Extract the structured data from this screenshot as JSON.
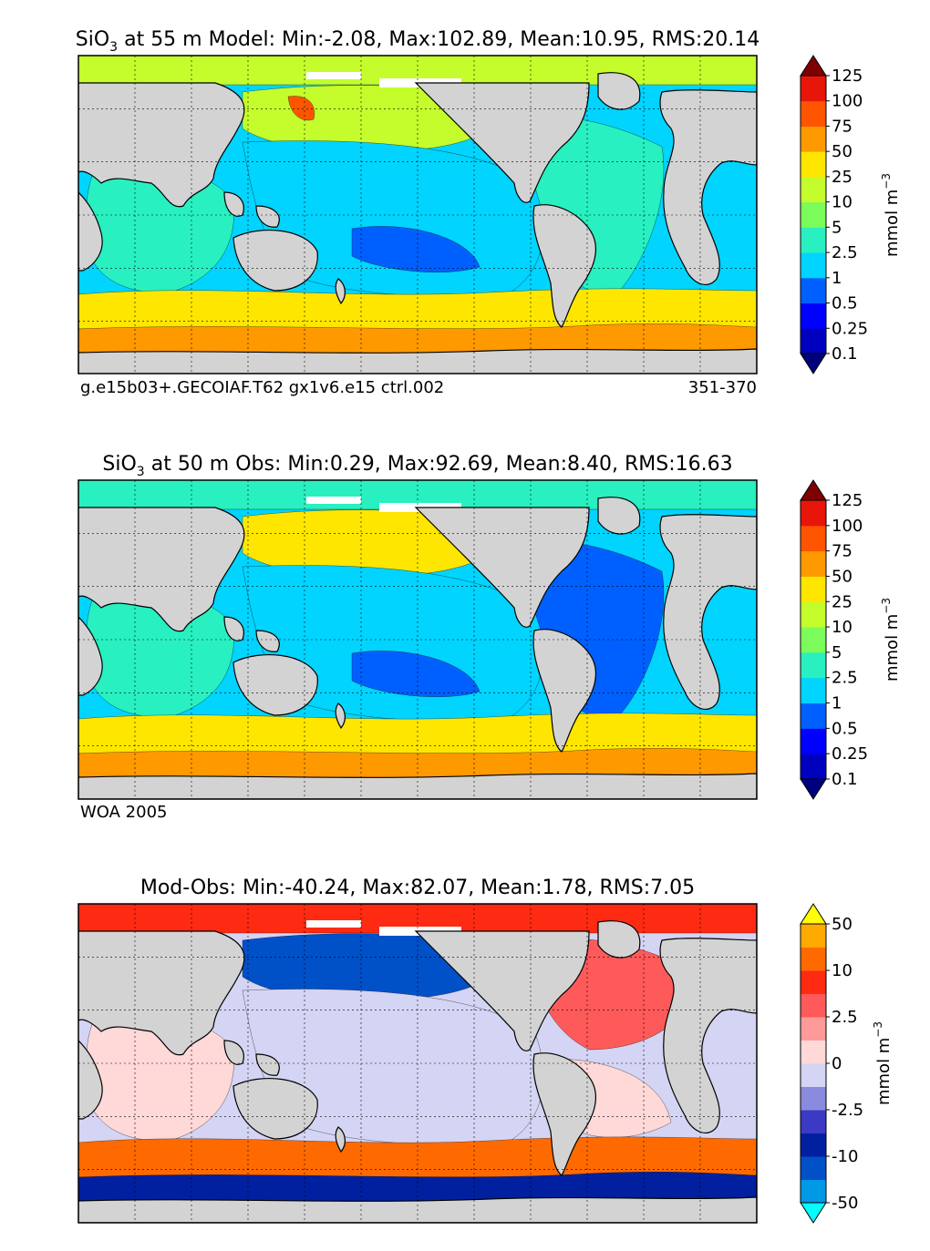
{
  "figure": {
    "colors": {
      "land": "#d3d3d3",
      "grid": "#000000",
      "coast": "#000000",
      "seaice": "#ffffff"
    }
  },
  "chart_data": [
    {
      "type": "heatmap",
      "panel": "model",
      "title_prefix": "SiO",
      "title_subscript": "3",
      "title": " at 55 m Model: Min:-2.08, Max:102.89, Mean:10.95, RMS:20.14",
      "stats": {
        "min": -2.08,
        "max": 102.89,
        "mean": 10.95,
        "rms": 20.14
      },
      "footer_left": "g.e15b03+.GECOIAF.T62 gx1v6.e15 ctrl.002",
      "footer_right": "351-370",
      "colorbar_label": "mmol m",
      "colorbar_exponent": "−3",
      "colorbar_levels": [
        "0.1",
        "0.25",
        "0.5",
        "1",
        "2.5",
        "5",
        "10",
        "25",
        "50",
        "75",
        "100",
        "125"
      ],
      "colorbar_colors": [
        "#00007f",
        "#0000bf",
        "#0000ff",
        "#0060ff",
        "#00d4ff",
        "#28f0c0",
        "#7cfc5a",
        "#c4fc2c",
        "#ffe600",
        "#ff9900",
        "#ff5500",
        "#e8150a",
        "#7f0000"
      ],
      "regions": [
        {
          "name": "arctic",
          "level": 7
        },
        {
          "name": "north-pacific-subpolar",
          "level": 7
        },
        {
          "name": "okhotsk",
          "level": 10
        },
        {
          "name": "pacific-subtropical",
          "level": 4
        },
        {
          "name": "south-pacific-gyre-core",
          "level": 3
        },
        {
          "name": "atlantic",
          "level": 5
        },
        {
          "name": "indian",
          "level": 5
        },
        {
          "name": "southern-ocean-band",
          "level": 8
        },
        {
          "name": "antarctic-margin",
          "level": 9
        }
      ]
    },
    {
      "type": "heatmap",
      "panel": "obs",
      "title_prefix": "SiO",
      "title_subscript": "3",
      "title": " at 50 m Obs: Min:0.29, Max:92.69, Mean:8.40, RMS:16.63",
      "stats": {
        "min": 0.29,
        "max": 92.69,
        "mean": 8.4,
        "rms": 16.63
      },
      "footer_left": "WOA 2005",
      "footer_right": "",
      "colorbar_label": "mmol m",
      "colorbar_exponent": "−3",
      "colorbar_levels": [
        "0.1",
        "0.25",
        "0.5",
        "1",
        "2.5",
        "5",
        "10",
        "25",
        "50",
        "75",
        "100",
        "125"
      ],
      "colorbar_colors": [
        "#00007f",
        "#0000bf",
        "#0000ff",
        "#0060ff",
        "#00d4ff",
        "#28f0c0",
        "#7cfc5a",
        "#c4fc2c",
        "#ffe600",
        "#ff9900",
        "#ff5500",
        "#e8150a",
        "#7f0000"
      ],
      "regions": [
        {
          "name": "arctic",
          "level": 5
        },
        {
          "name": "north-pacific-subpolar",
          "level": 8
        },
        {
          "name": "pacific-subtropical",
          "level": 4
        },
        {
          "name": "south-pacific-gyre-core",
          "level": 3
        },
        {
          "name": "atlantic",
          "level": 3
        },
        {
          "name": "indian",
          "level": 5
        },
        {
          "name": "southern-ocean-band",
          "level": 8
        },
        {
          "name": "antarctic-margin",
          "level": 9
        }
      ]
    },
    {
      "type": "heatmap",
      "panel": "difference",
      "title_prefix": "",
      "title_subscript": "",
      "title": "Mod-Obs: Min:-40.24, Max:82.07, Mean:1.78, RMS:7.05",
      "stats": {
        "min": -40.24,
        "max": 82.07,
        "mean": 1.78,
        "rms": 7.05
      },
      "footer_left": "",
      "footer_right": "",
      "colorbar_label": "mmol m",
      "colorbar_exponent": "−3",
      "colorbar_levels": [
        "-50",
        "-25",
        "-10",
        "-5",
        "-2.5",
        "-1",
        "0",
        "1",
        "2.5",
        "5",
        "10",
        "25",
        "50"
      ],
      "colorbar_tick_labels": [
        "-50",
        "-10",
        "-2.5",
        "0",
        "2.5",
        "10",
        "50"
      ],
      "colorbar_colors": [
        "#00ffff",
        "#0099e6",
        "#0050c8",
        "#0020a0",
        "#3a3ac4",
        "#8a8ade",
        "#d4d4f4",
        "#ffd8d8",
        "#ff9a9a",
        "#ff5a5a",
        "#ff2a12",
        "#ff6a00",
        "#ffaa00",
        "#ffff00"
      ],
      "regions": [
        {
          "name": "arctic",
          "level": 10
        },
        {
          "name": "north-pacific-subpolar",
          "level": 2
        },
        {
          "name": "pacific-subtropical",
          "level": 6
        },
        {
          "name": "atlantic-north",
          "level": 9
        },
        {
          "name": "atlantic-south",
          "level": 7
        },
        {
          "name": "indian",
          "level": 7
        },
        {
          "name": "southern-ocean-band",
          "level": 11
        },
        {
          "name": "antarctic-margin",
          "level": 3
        }
      ]
    }
  ]
}
